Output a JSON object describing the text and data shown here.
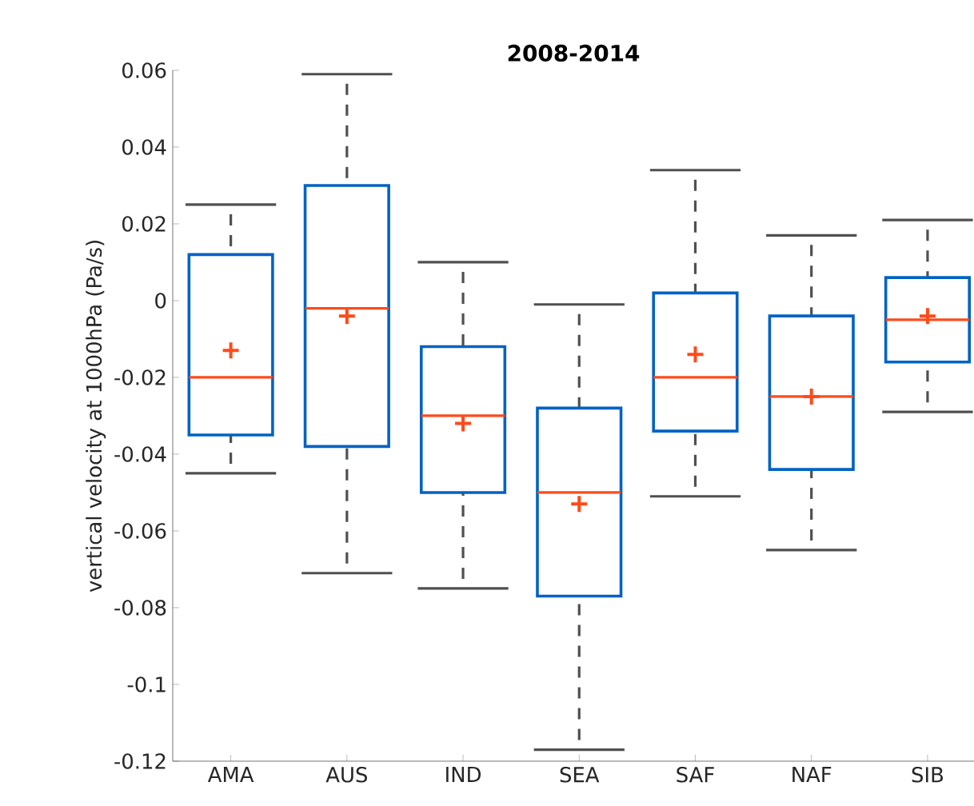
{
  "chart_data": {
    "type": "box",
    "title": "2008-2014",
    "ylabel": "vertical velocity at 1000hPa (Pa/s)",
    "categories": [
      "AMA",
      "AUS",
      "IND",
      "SEA",
      "SAF",
      "NAF",
      "SIB"
    ],
    "series": [
      {
        "color": "#0062c4",
        "boxes": [
          {
            "low": -0.045,
            "q1": -0.035,
            "median": -0.02,
            "q3": 0.012,
            "high": 0.025,
            "mean": -0.013
          },
          {
            "low": -0.071,
            "q1": -0.038,
            "median": -0.002,
            "q3": 0.03,
            "high": 0.059,
            "mean": -0.004
          },
          {
            "low": -0.075,
            "q1": -0.05,
            "median": -0.03,
            "q3": -0.012,
            "high": 0.01,
            "mean": -0.032
          },
          {
            "low": -0.117,
            "q1": -0.077,
            "median": -0.05,
            "q3": -0.028,
            "high": -0.001,
            "mean": -0.053
          },
          {
            "low": -0.051,
            "q1": -0.034,
            "median": -0.02,
            "q3": 0.002,
            "high": 0.034,
            "mean": -0.014
          },
          {
            "low": -0.065,
            "q1": -0.044,
            "median": -0.025,
            "q3": -0.004,
            "high": 0.017,
            "mean": -0.025
          },
          {
            "low": -0.029,
            "q1": -0.016,
            "median": -0.005,
            "q3": 0.006,
            "high": 0.021,
            "mean": -0.004
          }
        ]
      }
    ],
    "ylim": [
      -0.12,
      0.06
    ],
    "yticks": [
      -0.12,
      -0.1,
      -0.08,
      -0.06,
      -0.04,
      -0.02,
      0,
      0.02,
      0.04,
      0.06
    ],
    "grid": false
  }
}
